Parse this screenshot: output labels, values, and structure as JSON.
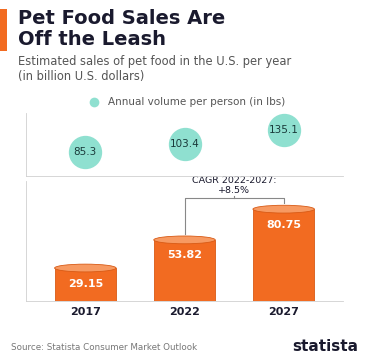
{
  "header": {
    "title": "Pet Food Sales Are\nOff the Leash",
    "subtitle": "Estimated sales of pet food in the U.S. per year\n(in billion U.S. dollars)"
  },
  "footer": {
    "source": "Source: Statista Consumer Market Outlook",
    "brand": "statista"
  },
  "chart_data": [
    {
      "type": "bar",
      "categories": [
        "2017",
        "2022",
        "2027"
      ],
      "values": [
        29.15,
        53.82,
        80.75
      ],
      "color": "#f26b21",
      "ylim": [
        0,
        105
      ],
      "yticks": [],
      "data_labels": true,
      "tick_labels": "x",
      "annotations": [
        {
          "text": "CAGR 2022-2027:\n+8.5%",
          "categories": [
            "2022",
            "2027"
          ]
        }
      ]
    },
    {
      "type": "scatter",
      "categories": [
        "2017",
        "2022",
        "2027"
      ],
      "series": [
        {
          "name": "Annual volume per person (in lbs)",
          "color": "#8fe0d0",
          "marker": "circle",
          "values": [
            85.3,
            103.4,
            135.1
          ]
        }
      ],
      "ylim": [
        30,
        175
      ],
      "yticks": [],
      "data_labels": true,
      "tick_labels": false,
      "legend": "lower center"
    }
  ]
}
